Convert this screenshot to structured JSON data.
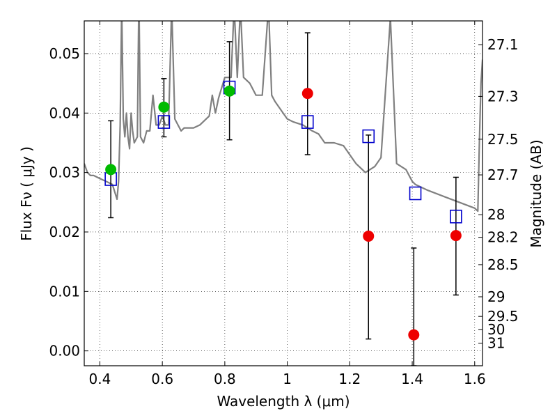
{
  "chart_data": {
    "type": "scatter",
    "xlabel": "Wavelength  λ (μm)",
    "ylabel": "Flux  Fν  ( μJy )",
    "ylabel_right": "Magnitude (AB)",
    "xlim": [
      0.35,
      1.625
    ],
    "ylim": [
      -0.0025,
      0.0555
    ],
    "x_ticks": [
      0.4,
      0.6,
      0.8,
      1.0,
      1.2,
      1.4,
      1.6
    ],
    "x_tick_labels": [
      "0.4",
      "0.6",
      "0.8",
      "1",
      "1.2",
      "1.4",
      "1.6"
    ],
    "y_ticks": [
      0.0,
      0.01,
      0.02,
      0.03,
      0.04,
      0.05
    ],
    "y_tick_labels": [
      "0.00",
      "0.01",
      "0.02",
      "0.03",
      "0.04",
      "0.05"
    ],
    "mag_ticks": [
      {
        "label": "27.1",
        "flux": 0.0515
      },
      {
        "label": "27.3",
        "flux": 0.0428
      },
      {
        "label": "27.5",
        "flux": 0.0356
      },
      {
        "label": "27.7",
        "flux": 0.0296
      },
      {
        "label": "28",
        "flux": 0.0229
      },
      {
        "label": "28.2",
        "flux": 0.0191
      },
      {
        "label": "28.5",
        "flux": 0.0145
      },
      {
        "label": "29",
        "flux": 0.0091
      },
      {
        "label": "29.5",
        "flux": 0.0058
      },
      {
        "label": "30",
        "flux": 0.0036
      },
      {
        "label": "31",
        "flux": 0.0013
      }
    ],
    "grid": true,
    "series": [
      {
        "kind": "spectrum-line",
        "color": "#808080",
        "x": [
          0.35,
          0.36,
          0.37,
          0.38,
          0.4,
          0.42,
          0.44,
          0.455,
          0.46,
          0.465,
          0.47,
          0.475,
          0.48,
          0.485,
          0.49,
          0.495,
          0.5,
          0.505,
          0.51,
          0.52,
          0.525,
          0.53,
          0.54,
          0.55,
          0.56,
          0.57,
          0.58,
          0.59,
          0.6,
          0.61,
          0.62,
          0.63,
          0.64,
          0.65,
          0.66,
          0.67,
          0.7,
          0.72,
          0.74,
          0.75,
          0.76,
          0.77,
          0.78,
          0.8,
          0.82,
          0.83,
          0.84,
          0.85,
          0.86,
          0.87,
          0.88,
          0.9,
          0.92,
          0.94,
          0.95,
          0.96,
          0.98,
          1.0,
          1.02,
          1.05,
          1.08,
          1.1,
          1.12,
          1.15,
          1.18,
          1.2,
          1.22,
          1.25,
          1.28,
          1.3,
          1.33,
          1.35,
          1.38,
          1.4,
          1.41,
          1.45,
          1.5,
          1.55,
          1.6,
          1.61,
          1.615,
          1.62,
          1.625
        ],
        "y": [
          0.0315,
          0.03,
          0.0295,
          0.0295,
          0.029,
          0.0285,
          0.028,
          0.0255,
          0.0285,
          0.038,
          0.058,
          0.039,
          0.036,
          0.04,
          0.036,
          0.034,
          0.04,
          0.037,
          0.035,
          0.036,
          0.06,
          0.036,
          0.035,
          0.037,
          0.037,
          0.043,
          0.038,
          0.038,
          0.0395,
          0.038,
          0.038,
          0.058,
          0.039,
          0.038,
          0.037,
          0.0375,
          0.0375,
          0.038,
          0.039,
          0.0395,
          0.043,
          0.04,
          0.0425,
          0.046,
          0.046,
          0.058,
          0.046,
          0.058,
          0.046,
          0.0455,
          0.045,
          0.043,
          0.043,
          0.058,
          0.043,
          0.042,
          0.0405,
          0.039,
          0.0385,
          0.038,
          0.037,
          0.0365,
          0.035,
          0.035,
          0.0345,
          0.033,
          0.0315,
          0.03,
          0.031,
          0.0325,
          0.056,
          0.0315,
          0.0305,
          0.0285,
          0.028,
          0.027,
          0.026,
          0.025,
          0.024,
          0.0235,
          0.035,
          0.045,
          0.049
        ]
      },
      {
        "kind": "model-points",
        "marker": "open-square",
        "color": "#0000cc",
        "x": [
          0.435,
          0.605,
          0.815,
          1.065,
          1.26,
          1.41,
          1.54
        ],
        "y": [
          0.0289,
          0.0385,
          0.0443,
          0.0385,
          0.0361,
          0.0265,
          0.0226
        ]
      },
      {
        "kind": "detections",
        "marker": "filled-circle",
        "color": "#00bb00",
        "x": [
          0.435,
          0.605,
          0.815
        ],
        "y": [
          0.0305,
          0.041,
          0.0437
        ]
      },
      {
        "kind": "non-detections",
        "marker": "filled-circle",
        "color": "#ee0000",
        "x": [
          1.065,
          1.26,
          1.405,
          1.54
        ],
        "y": [
          0.0433,
          0.0193,
          0.0027,
          0.0194
        ]
      },
      {
        "kind": "error-bars",
        "color": "#000000",
        "x": [
          0.435,
          0.605,
          0.815,
          1.065,
          1.26,
          1.405,
          1.54
        ],
        "y_low": [
          0.0224,
          0.036,
          0.0355,
          0.033,
          0.002,
          -0.0025,
          0.0094
        ],
        "y_high": [
          0.0387,
          0.0458,
          0.052,
          0.0535,
          0.0363,
          0.0173,
          0.0292
        ]
      }
    ]
  }
}
